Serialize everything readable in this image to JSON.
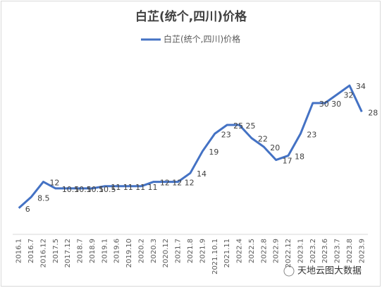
{
  "chart_data": {
    "type": "line",
    "title": "白芷(统个,四川)价格",
    "categories": [
      "2016.1",
      "2016.7",
      "2016.12",
      "2017.5",
      "2017.12",
      "2018.7",
      "2018.9",
      "2019.1",
      "2019.6",
      "2019.10",
      "2020.2",
      "2020.3",
      "2020.12",
      "2021.7",
      "2021.8",
      "2021.9",
      "2021.10.1",
      "2021.11",
      "2022.4",
      "2022.5",
      "2022.8",
      "2022.9",
      "2022.12",
      "2023.1",
      "2023.2",
      "2023.6",
      "2023.7",
      "2023.8",
      "2023.9"
    ],
    "series": [
      {
        "name": "白芷(统个,四川)价格",
        "color": "#4472c4",
        "values": [
          6,
          8.5,
          12,
          10.5,
          10.5,
          10.5,
          10.5,
          11,
          11,
          11,
          11,
          12,
          12,
          12,
          14,
          19,
          23,
          25,
          25,
          22,
          20,
          17,
          18,
          23,
          30,
          30,
          32,
          34,
          28
        ]
      }
    ],
    "ylim": [
      0,
      35
    ],
    "legend": "top",
    "annotation": "天地云图大数据"
  }
}
